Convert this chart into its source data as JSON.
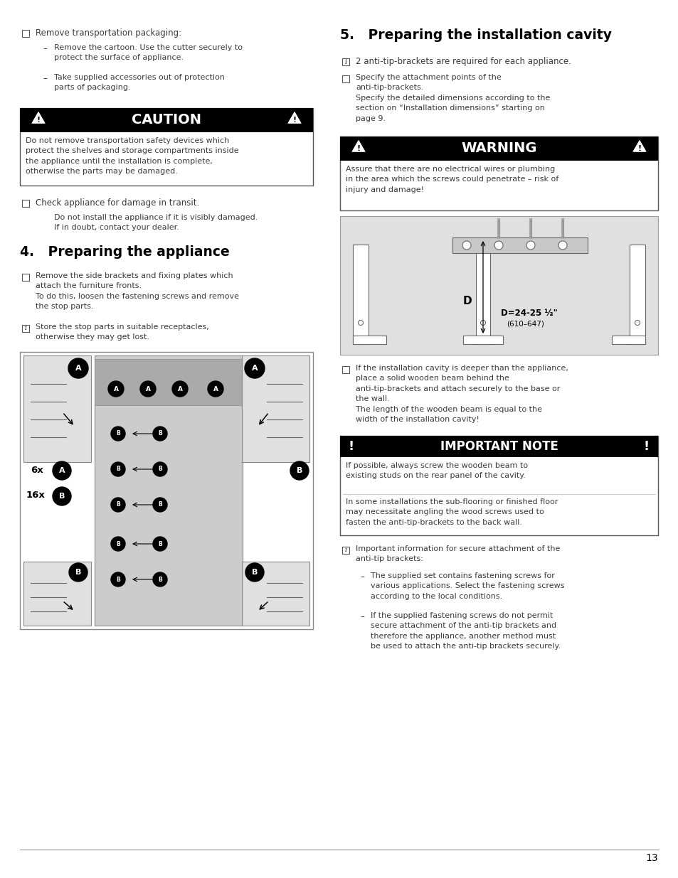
{
  "page_bg": "#ffffff",
  "page_number": "13",
  "colors": {
    "black": "#000000",
    "white": "#ffffff",
    "text_color": "#3a3a3a",
    "border_gray": "#777777",
    "diagram_bg": "#e0e0e0",
    "diagram_border": "#888888"
  },
  "left": {
    "bullet1_header": "Remove transportation packaging:",
    "sub1": "Remove the cartoon. Use the cutter securely to\nprotect the surface of appliance.",
    "sub2": "Take supplied accessories out of protection\nparts of packaging.",
    "caution_title": "CAUTION",
    "caution_text": "Do not remove transportation safety devices which\nprotect the shelves and storage compartments inside\nthe appliance until the installation is complete,\notherwise the parts may be damaged.",
    "bullet2": "Check appliance for damage in transit.",
    "bullet2_sub": "Do not install the appliance if it is visibly damaged.\nIf in doubt, contact your dealer.",
    "sec4_title": "4.   Preparing the appliance",
    "bullet3": "Remove the side brackets and fixing plates which\nattach the furniture fronts.\nTo do this, loosen the fastening screws and remove\nthe stop parts.",
    "info1": "Store the stop parts in suitable receptacles,\notherwise they may get lost."
  },
  "right": {
    "sec5_title": "5.   Preparing the installation cavity",
    "info2": "2 anti-tip-brackets are required for each appliance.",
    "bullet4": "Specify the attachment points of the\nanti-tip-brackets.\nSpecify the detailed dimensions according to the\nsection on “Installation dimensions” starting on\npage 9.",
    "warning_title": "WARNING",
    "warning_text": "Assure that there are no electrical wires or plumbing\nin the area which the screws could penetrate – risk of\ninjury and damage!",
    "bullet5": "If the installation cavity is deeper than the appliance,\nplace a solid wooden beam behind the\nanti-tip-brackets and attach securely to the base or\nthe wall.\nThe length of the wooden beam is equal to the\nwidth of the installation cavity!",
    "imp_title": "IMPORTANT NOTE",
    "imp_text1": "If possible, always screw the wooden beam to\nexisting studs on the rear panel of the cavity.",
    "imp_text2": "In some installations the sub-flooring or finished floor\nmay necessitate angling the wood screws used to\nfasten the anti-tip-brackets to the back wall.",
    "info3": "Important information for secure attachment of the\nanti-tip brackets:",
    "dash1": "The supplied set contains fastening screws for\nvarious applications. Select the fastening screws\naccording to the local conditions.",
    "dash2": "If the supplied fastening screws do not permit\nsecure attachment of the anti-tip brackets and\ntherefore the appliance, another method must\nbe used to attach the anti-tip brackets securely."
  }
}
